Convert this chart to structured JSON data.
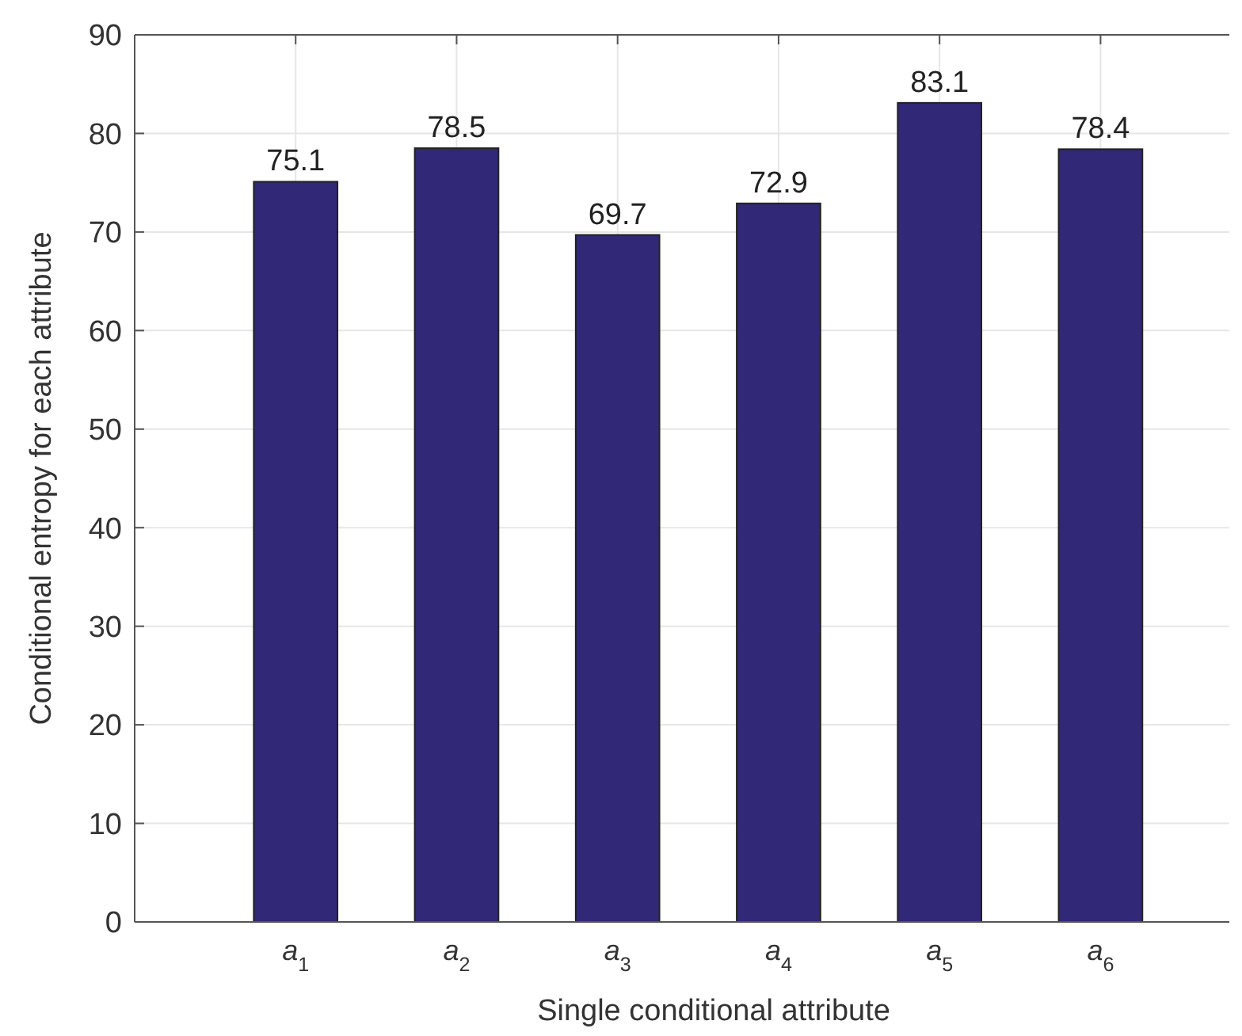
{
  "chart_data": {
    "type": "bar",
    "xlabel": "Single conditional attribute",
    "ylabel": "Conditional entropy for each attribute",
    "categories": [
      "a$_{1}$",
      "a$_{2}$",
      "a$_{3}$",
      "a$_{4}$",
      "a$_{5}$",
      "a$_{6}$"
    ],
    "values": [
      75.1,
      78.5,
      69.7,
      72.9,
      83.1,
      78.4
    ],
    "color": "#312878",
    "ylim": [
      0,
      90
    ],
    "yticks": [
      0,
      10,
      20,
      30,
      40,
      50,
      60,
      70,
      80,
      90
    ],
    "grid": true,
    "data_labels": true
  }
}
